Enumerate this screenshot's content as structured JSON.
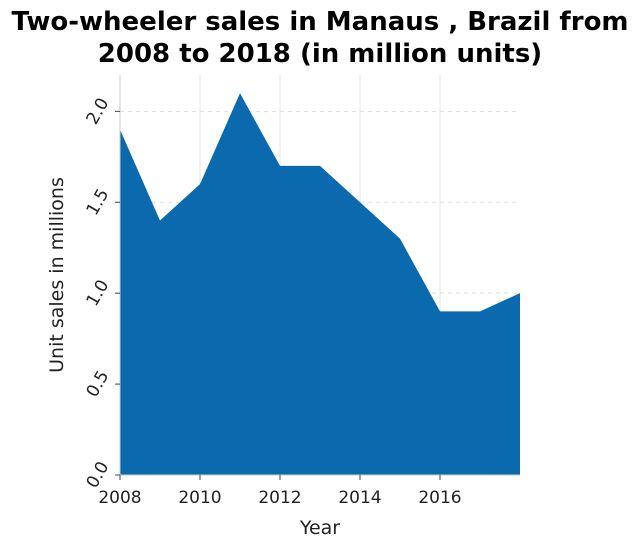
{
  "chart_data": {
    "type": "area",
    "title_lines": [
      "Two-wheeler sales in Manaus , Brazil from",
      "2008 to 2018 (in million units)"
    ],
    "xlabel": "Year",
    "ylabel": "Unit sales in millions",
    "x": [
      2008,
      2009,
      2010,
      2011,
      2012,
      2013,
      2014,
      2015,
      2016,
      2017,
      2018
    ],
    "series": [
      {
        "values": [
          1.9,
          1.4,
          1.6,
          2.1,
          1.7,
          1.7,
          1.5,
          1.3,
          0.9,
          0.9,
          1.0
        ]
      }
    ],
    "xlim": [
      2008,
      2018
    ],
    "ylim": [
      0,
      2.2
    ],
    "xticks": [
      2008,
      2010,
      2012,
      2014,
      2016
    ],
    "xtick_labels": [
      "2008",
      "2010",
      "2012",
      "2014",
      "2016"
    ],
    "yticks": [
      0.0,
      0.5,
      1.0,
      1.5,
      2.0
    ],
    "ytick_labels": [
      "0.0",
      "0.5",
      "1.0",
      "1.5",
      "2.0"
    ],
    "fill_color": "#0a6aad",
    "grid": true
  }
}
